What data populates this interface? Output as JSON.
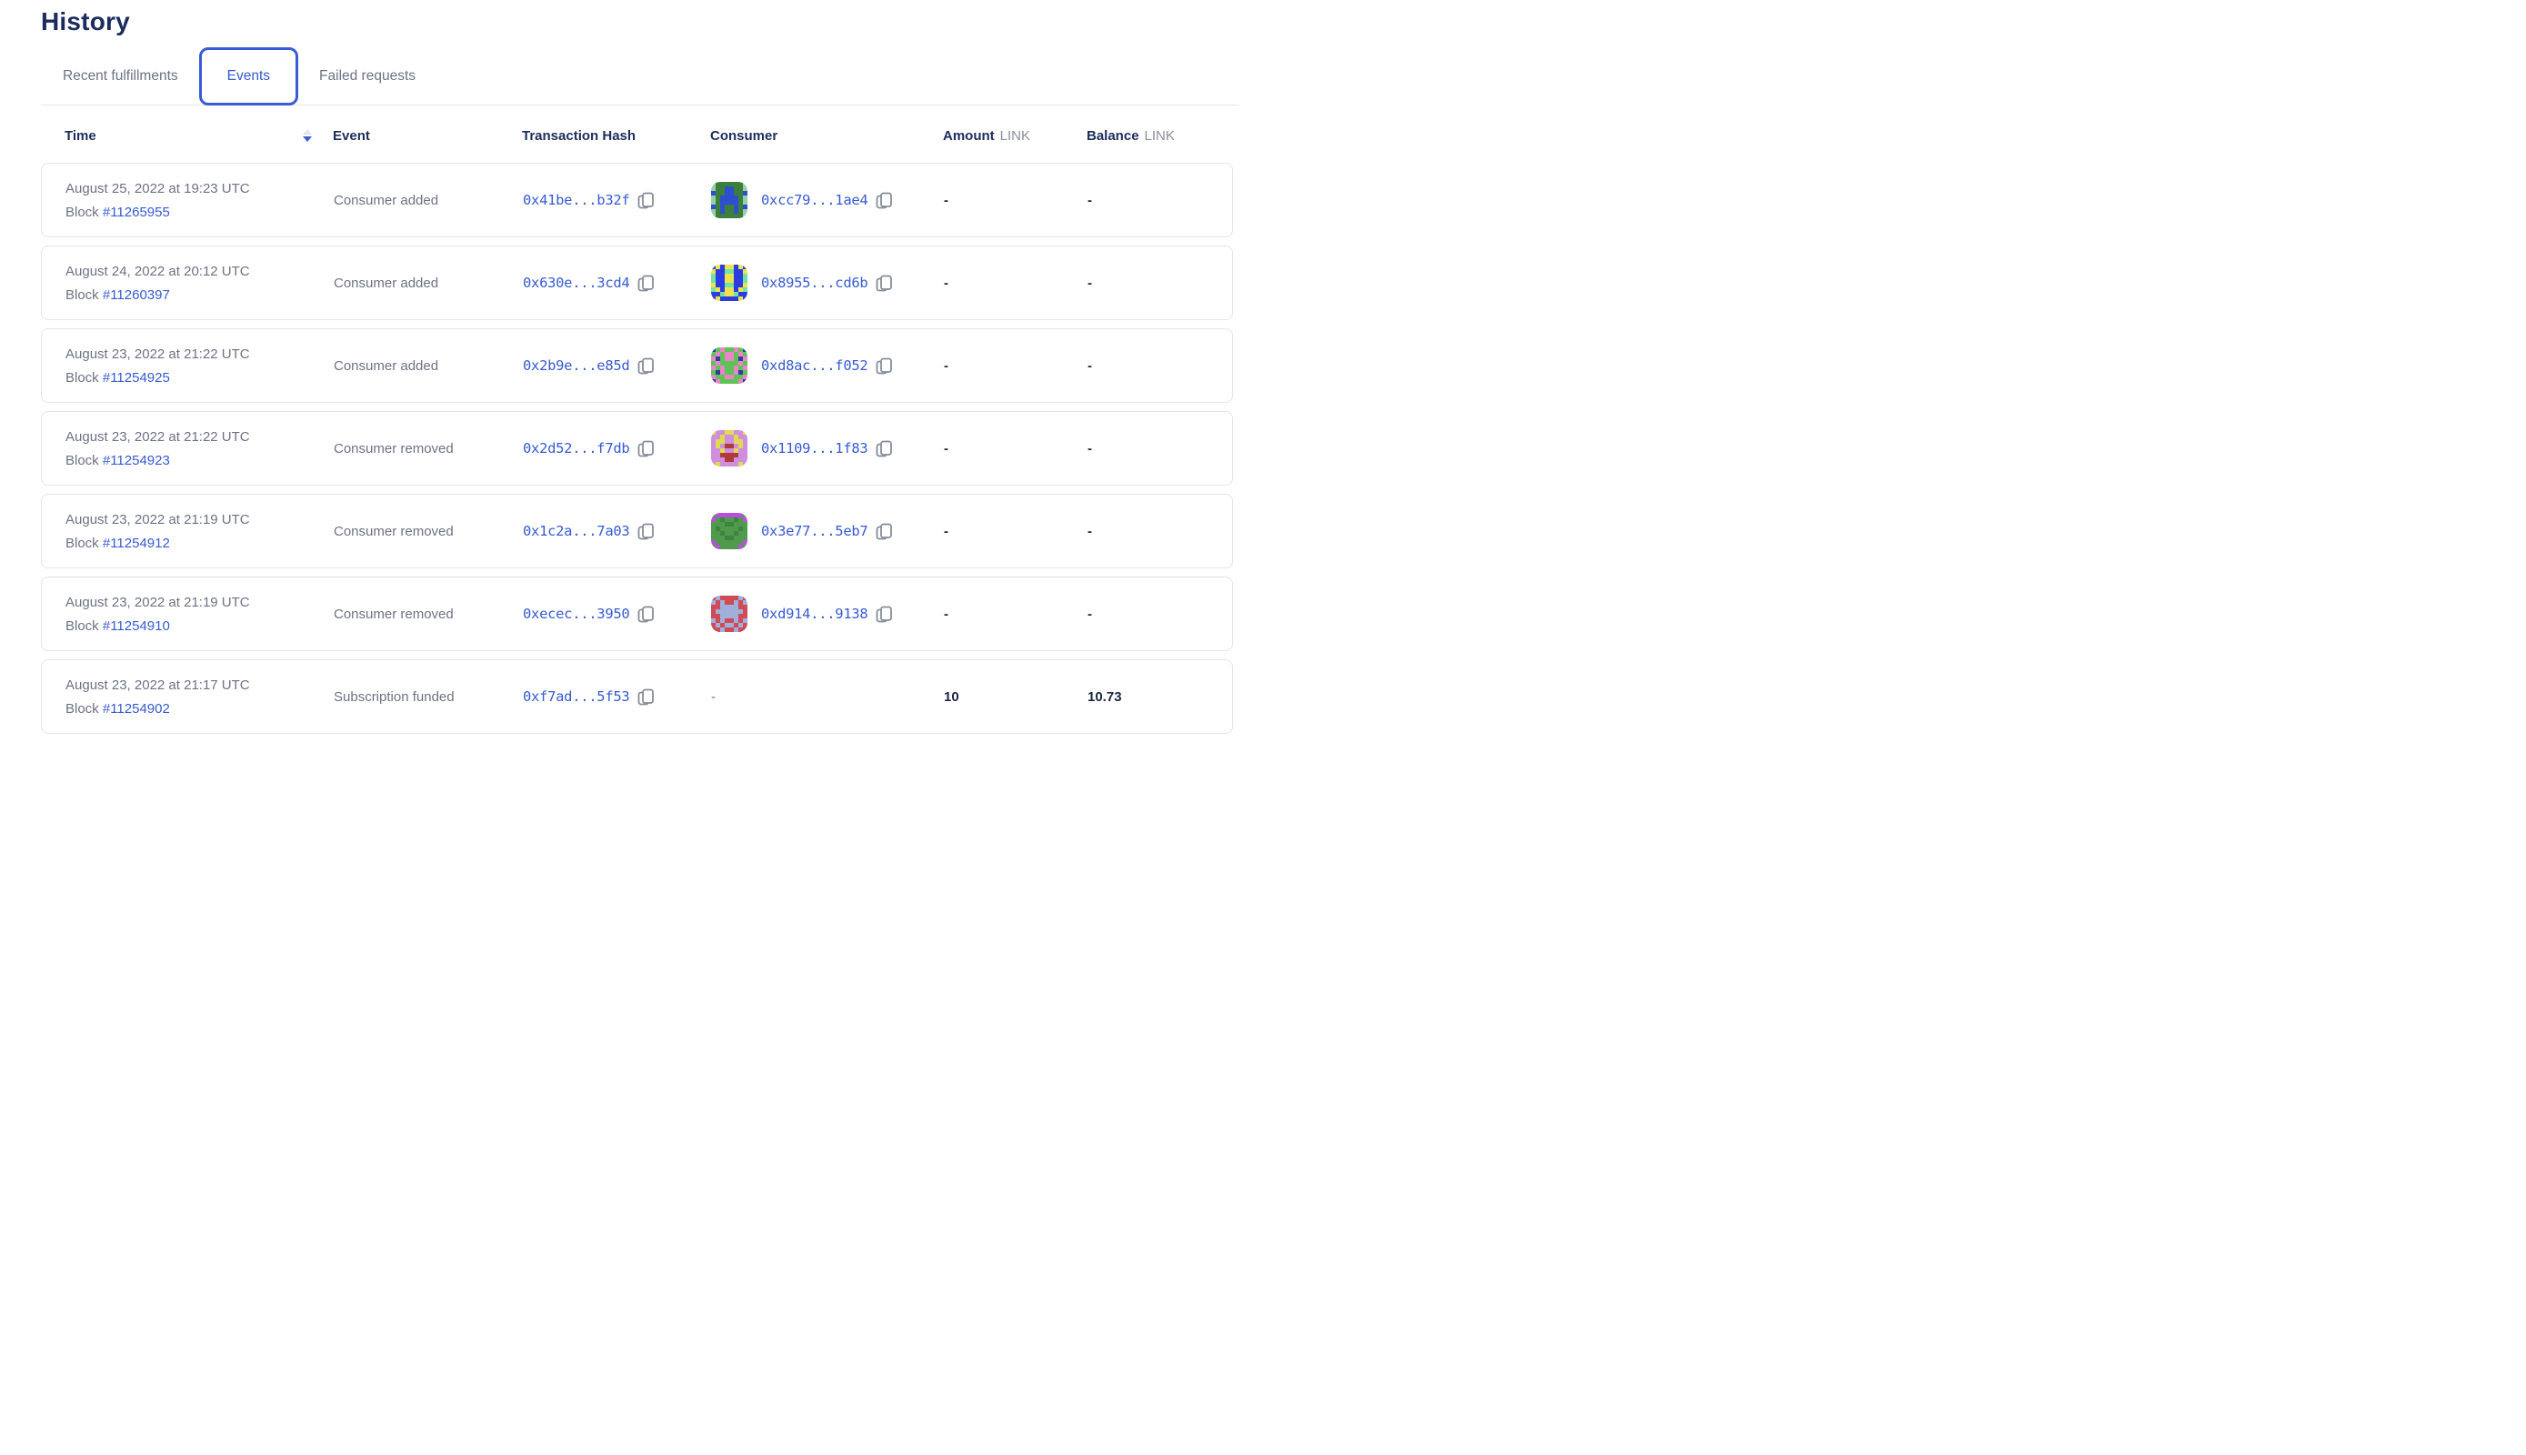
{
  "page": {
    "title": "History"
  },
  "tabs": [
    {
      "label": "Recent fulfillments",
      "active": false
    },
    {
      "label": "Events",
      "active": true
    },
    {
      "label": "Failed requests",
      "active": false
    }
  ],
  "colors": {
    "accent_blue": "#375bd2",
    "tab_border_blue": "#3a5bd7",
    "heading_navy": "#1c2b5e",
    "header_navy": "#1d2d5c",
    "body_gray": "#6d7385",
    "unit_gray": "#8a8f9c",
    "card_border": "#e3e5ec",
    "sort_inactive": "#e3e6ea",
    "value_navy": "#1b2740",
    "copy_icon_gray": "#868d99"
  },
  "icons": {
    "sort": "sort-descending-icon",
    "copy": "copy-icon",
    "consumer_avatar": "blockies-avatar"
  },
  "table": {
    "columns": {
      "time": "Time",
      "event": "Event",
      "tx": "Transaction Hash",
      "consumer": "Consumer",
      "amount": "Amount",
      "balance": "Balance",
      "unit": "LINK"
    },
    "rows": [
      {
        "date": "August 25, 2022 at 19:23 UTC",
        "block_label": "Block",
        "block": "#11265955",
        "event": "Consumer added",
        "tx": "0x41be...b32f",
        "consumer": "0xcc79...1ae4",
        "amount": "-",
        "balance": "-",
        "avatar": {
          "palette": {
            "G": "#3c7f3b",
            "B": "#2d50cf",
            "S": "#96cfac"
          },
          "pattern": [
            "SGGGGGGS",
            "SGGBBGGS",
            "BGGBBGGB",
            "SGBBBBGS",
            "SGBBBBGS",
            "BGBGGBGB",
            "SGBGGBGS",
            "SGGGGGGS"
          ]
        }
      },
      {
        "date": "August 24, 2022 at 20:12 UTC",
        "block_label": "Block",
        "block": "#11260397",
        "event": "Consumer added",
        "tx": "0x630e...3cd4",
        "consumer": "0x8955...cd6b",
        "amount": "-",
        "balance": "-",
        "avatar": {
          "palette": {
            "B": "#2b3de0",
            "Y": "#efe34d",
            "G": "#72e3a2"
          },
          "pattern": [
            "BYBYYBYB",
            "YBBGGBBY",
            "GBBYYBBG",
            "GBBYYBBG",
            "YBBGGBBY",
            "GYBYYBYG",
            "BBGYYGBB",
            "BYBBBBYB"
          ]
        }
      },
      {
        "date": "August 23, 2022 at 21:22 UTC",
        "block_label": "Block",
        "block": "#11254925",
        "event": "Consumer added",
        "tx": "0x2b9e...e85d",
        "consumer": "0xd8ac...f052",
        "amount": "-",
        "balance": "-",
        "avatar": {
          "palette": {
            "G": "#5cc455",
            "P": "#ef83c9",
            "N": "#2b3f9e"
          },
          "pattern": [
            "NGPGGPGN",
            "GPGPPGPG",
            "PNGPPGNP",
            "GPGGGGPG",
            "PGPGGPGP",
            "GNPGGPNG",
            "PGGPPGGP",
            "NPGGGGPN"
          ]
        }
      },
      {
        "date": "August 23, 2022 at 21:22 UTC",
        "block_label": "Block",
        "block": "#11254923",
        "event": "Consumer removed",
        "tx": "0x2d52...f7db",
        "consumer": "0x1109...1f83",
        "amount": "-",
        "balance": "-",
        "avatar": {
          "palette": {
            "L": "#cf8fdd",
            "Y": "#e0da52",
            "R": "#b03a3a"
          },
          "pattern": [
            "YLLYYLLY",
            "LLYLLYLL",
            "LYYLLYYL",
            "LYLRRLYL",
            "LLYLLYLL",
            "LLRRRRLL",
            "LLLRRLLL",
            "LYLLLLYL"
          ]
        }
      },
      {
        "date": "August 23, 2022 at 21:19 UTC",
        "block_label": "Block",
        "block": "#11254912",
        "event": "Consumer removed",
        "tx": "0x1c2a...7a03",
        "consumer": "0x3e77...5eb7",
        "amount": "-",
        "balance": "-",
        "avatar": {
          "palette": {
            "G": "#4f9a4c",
            "D": "#3f8340",
            "M": "#b84fe0"
          },
          "pattern": [
            "GMMMMMMG",
            "MGDGGDGM",
            "GGGDDGGG",
            "GDGGGGDG",
            "GGDGGDGG",
            "GGGDDGGG",
            "MGGGGGGM",
            "GMGGGGMG"
          ]
        }
      },
      {
        "date": "August 23, 2022 at 21:19 UTC",
        "block_label": "Block",
        "block": "#11254910",
        "event": "Consumer removed",
        "tx": "0xecec...3950",
        "consumer": "0xd914...9138",
        "amount": "-",
        "balance": "-",
        "avatar": {
          "palette": {
            "R": "#cf4b55",
            "P": "#9fb0dc"
          },
          "pattern": [
            "RPRRRRPR",
            "PRPRRPRP",
            "RRPPPPRR",
            "RPPPPPPR",
            "RRPPPPRR",
            "PRPRRPRP",
            "RPRPPRPR",
            "RRPRRPRR"
          ]
        }
      },
      {
        "date": "August 23, 2022 at 21:17 UTC",
        "block_label": "Block",
        "block": "#11254902",
        "event": "Subscription funded",
        "tx": "0xf7ad...5f53",
        "consumer": "-",
        "amount": "10",
        "balance": "10.73",
        "avatar": null
      }
    ]
  }
}
